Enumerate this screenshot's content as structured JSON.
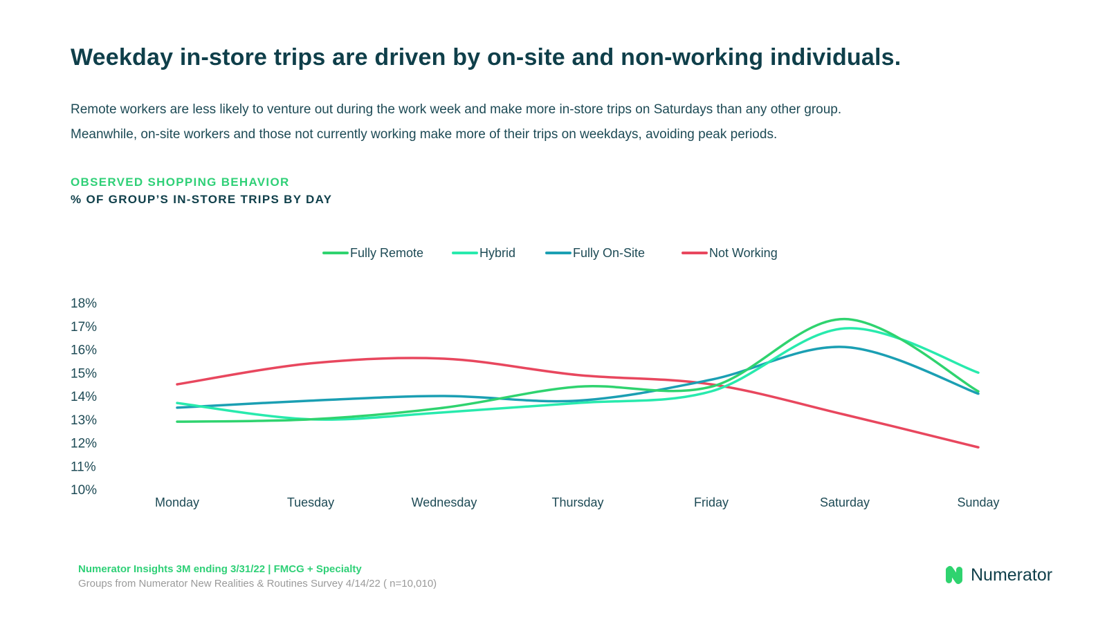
{
  "header": {
    "title": "Weekday in-store trips are driven by on-site and non-working individuals.",
    "subtitle_line1": "Remote workers are less likely to venture out during the work week and make more in-store trips on Saturdays than any other group.",
    "subtitle_line2": "Meanwhile, on-site workers and those not currently working make more of their trips on weekdays, avoiding peak periods."
  },
  "chart_header": {
    "eyebrow": "OBSERVED SHOPPING BEHAVIOR",
    "heading": "% OF GROUP’S IN-STORE TRIPS BY DAY"
  },
  "chart_data": {
    "type": "line",
    "title": "% OF GROUP’S IN-STORE TRIPS BY DAY",
    "xlabel": "",
    "ylabel": "",
    "categories": [
      "Monday",
      "Tuesday",
      "Wednesday",
      "Thursday",
      "Friday",
      "Saturday",
      "Sunday"
    ],
    "ylim": [
      10,
      18
    ],
    "yticks": [
      10,
      11,
      12,
      13,
      14,
      15,
      16,
      17,
      18
    ],
    "ytick_labels": [
      "10%",
      "11%",
      "12%",
      "13%",
      "14%",
      "15%",
      "16%",
      "17%",
      "18%"
    ],
    "grid": false,
    "legend_position": "top-center",
    "series": [
      {
        "name": "Fully Remote",
        "color": "#2fd36f",
        "values": [
          12.9,
          13.0,
          13.5,
          14.4,
          14.4,
          17.3,
          14.2
        ]
      },
      {
        "name": "Hybrid",
        "color": "#28eaad",
        "values": [
          13.7,
          13.0,
          13.3,
          13.7,
          14.2,
          16.9,
          15.0
        ]
      },
      {
        "name": "Fully On-Site",
        "color": "#1b9fb3",
        "values": [
          13.5,
          13.8,
          14.0,
          13.8,
          14.7,
          16.1,
          14.1
        ]
      },
      {
        "name": "Not Working",
        "color": "#e8475e",
        "values": [
          14.5,
          15.4,
          15.6,
          14.9,
          14.5,
          13.2,
          11.8
        ]
      }
    ]
  },
  "footer": {
    "source": "Numerator Insights 3M ending 3/31/22 | FMCG + Specialty",
    "note": "Groups from Numerator New Realities & Routines Survey 4/14/22 ( n=10,010)"
  },
  "brand": {
    "name": "Numerator",
    "logo_icon": "numerator-logo-icon",
    "logo_color": "#2fd36f"
  }
}
